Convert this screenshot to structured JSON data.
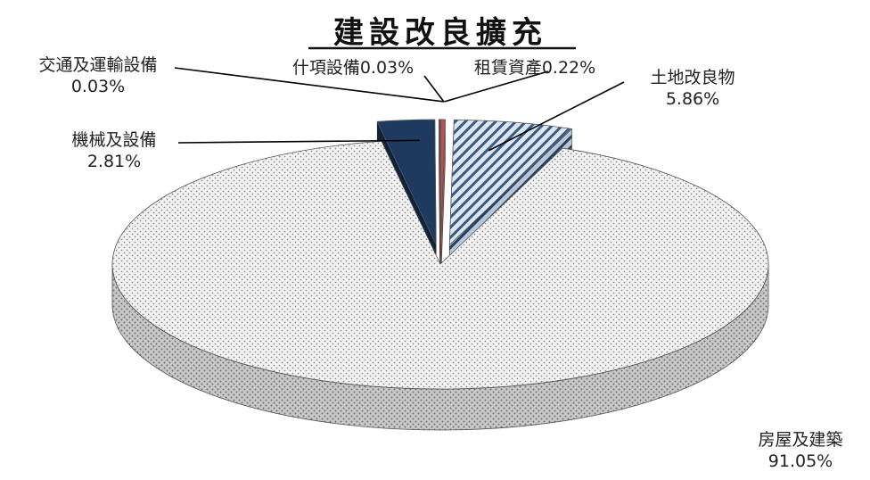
{
  "chart_data": {
    "type": "pie",
    "title": "建設改良擴充",
    "slices": [
      {
        "category": "租賃資產",
        "value_label": "0.22%",
        "value": 0.22
      },
      {
        "category": "土地改良物",
        "value_label": "5.86%",
        "value": 5.86
      },
      {
        "category": "房屋及建築",
        "value_label": "91.05%",
        "value": 91.05
      },
      {
        "category": "機械及設備",
        "value_label": "2.81%",
        "value": 2.81
      },
      {
        "category": "交通及運輸設備",
        "value_label": "0.03%",
        "value": 0.03
      },
      {
        "category": "什項設備",
        "value_label": "0.03%",
        "value": 0.03
      }
    ],
    "legend": "none",
    "colors": {
      "lease": "#c0504d",
      "land_light": "#dce6f2",
      "land_stripe": "#3b5a82",
      "building_light": "#f2f2f2",
      "building_dot": "#9a9a9a",
      "machinery": "#1f3a5f",
      "machinery_side": "#0f2238",
      "leader": "#000000"
    }
  }
}
